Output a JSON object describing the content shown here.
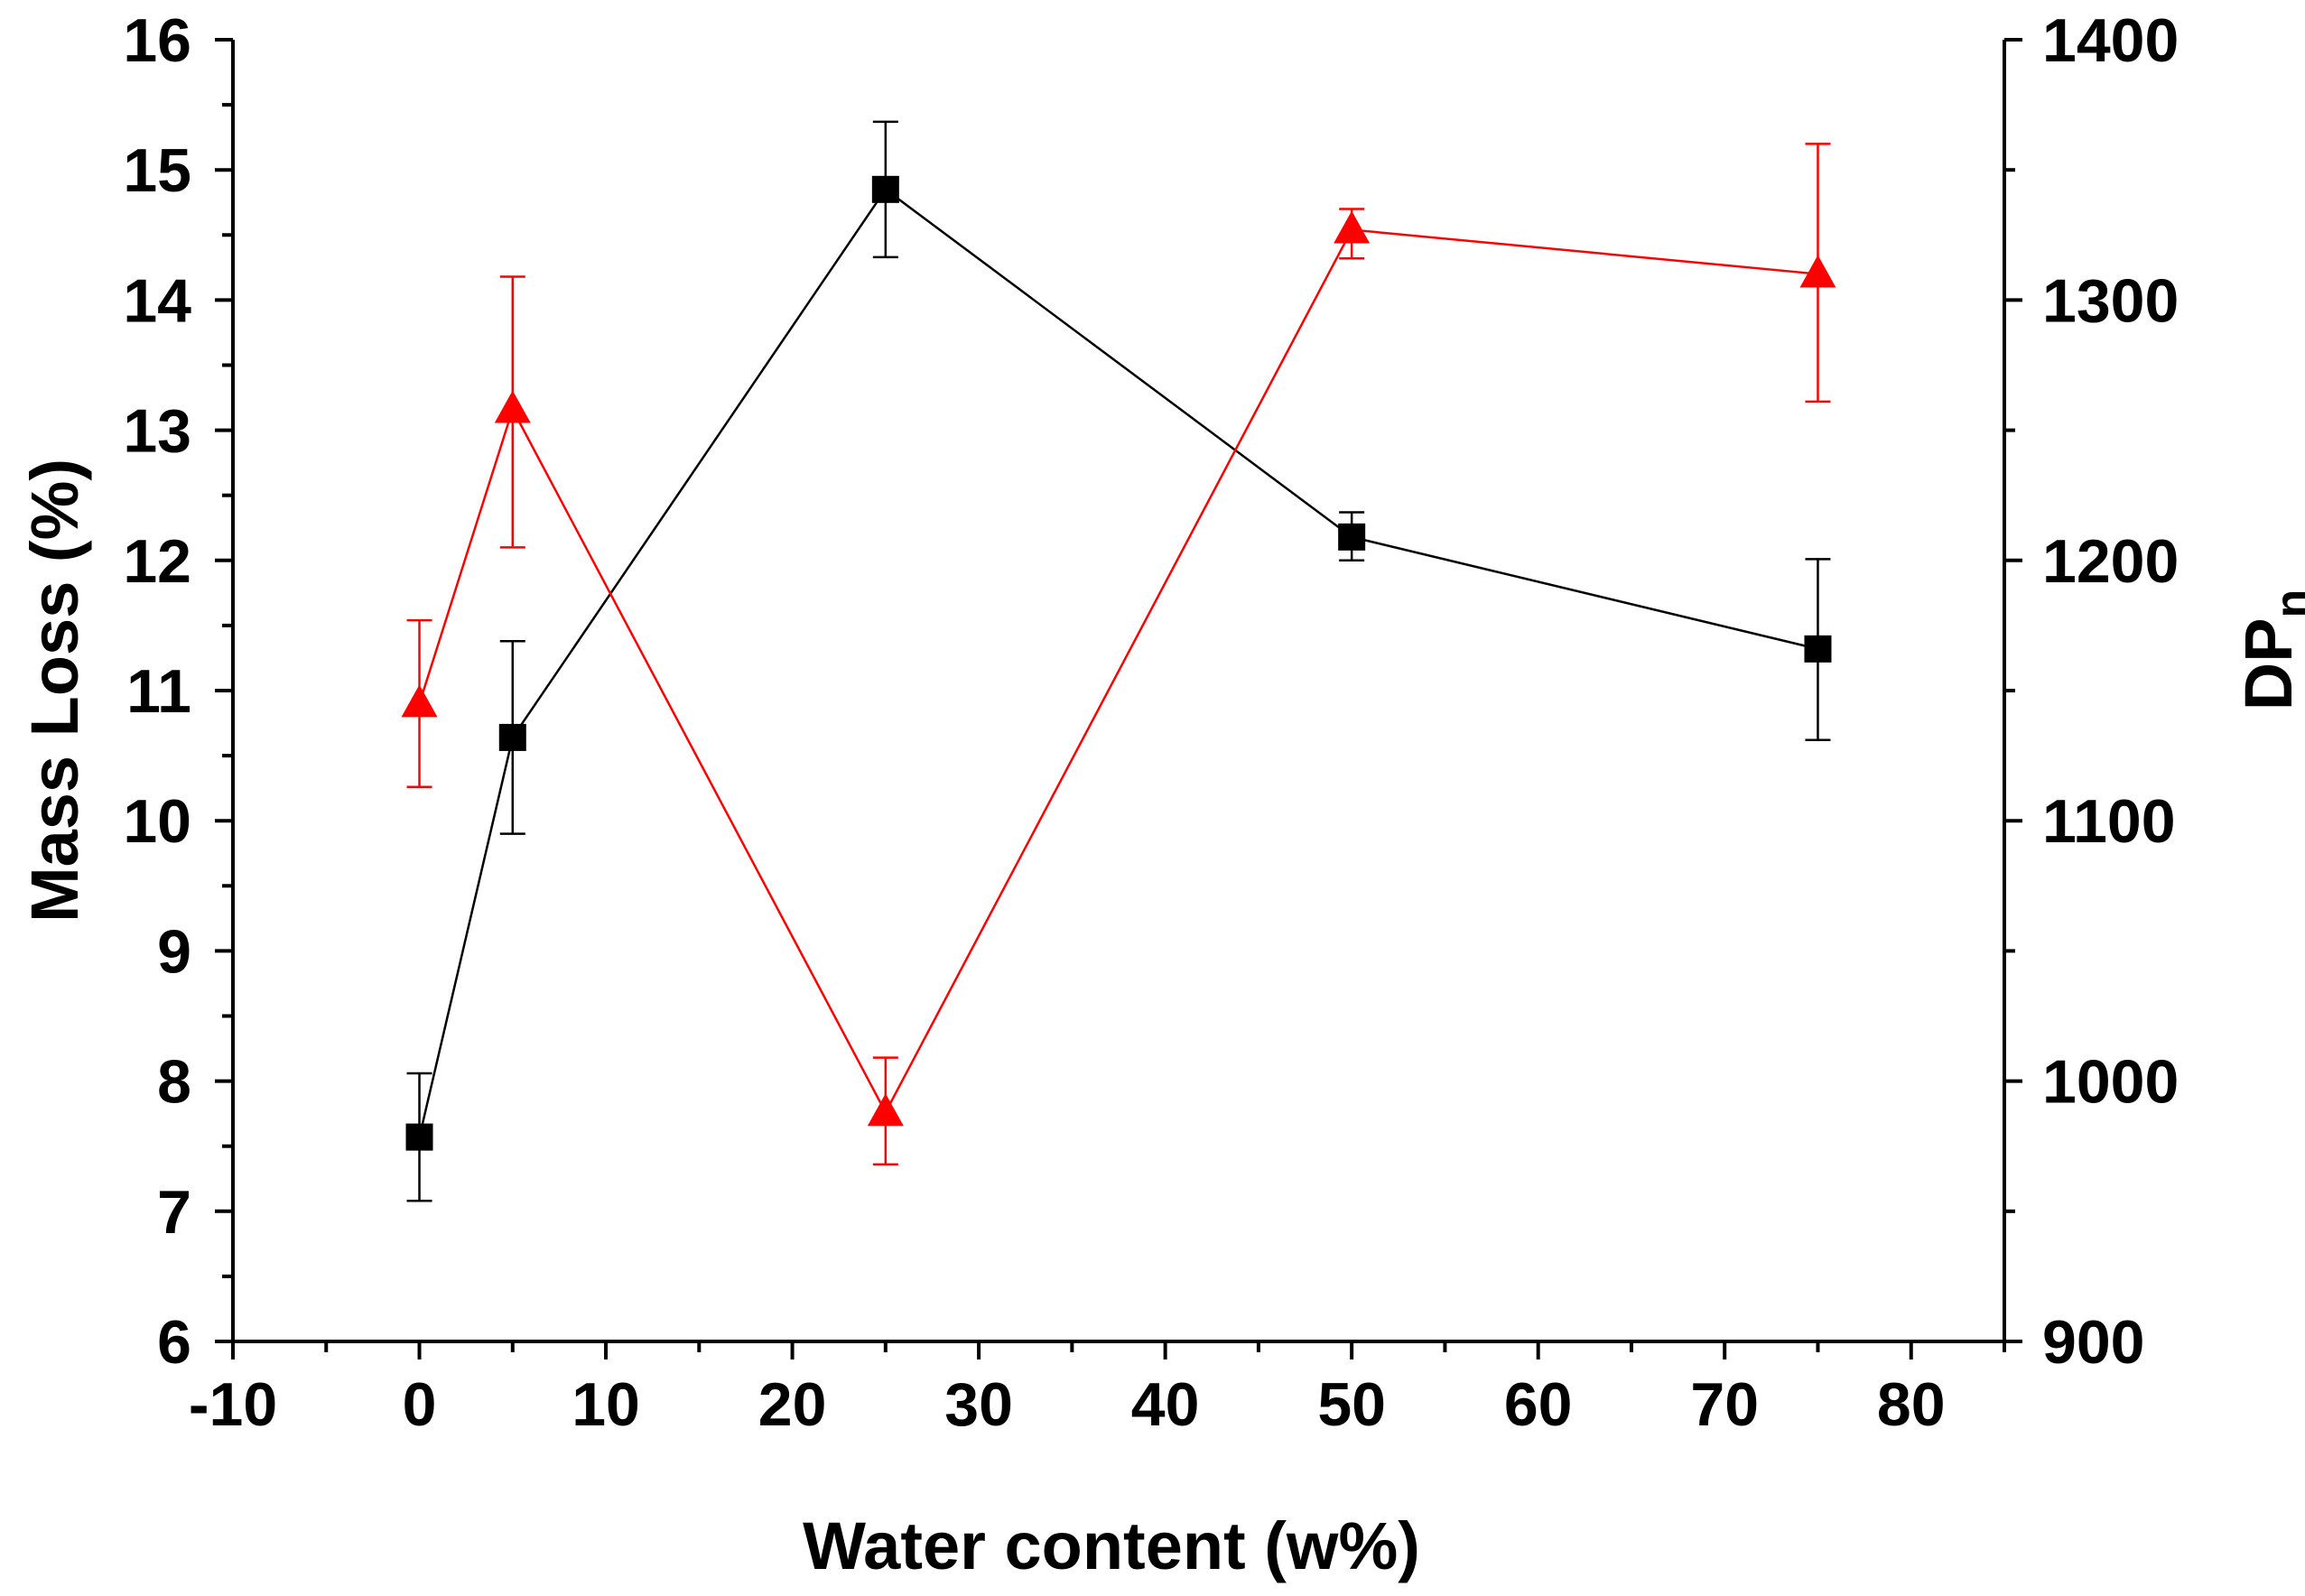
{
  "chart_data": {
    "type": "scatter",
    "title": "",
    "xlabel": "Water content (w%)",
    "ylabel": "Mass Loss (%)",
    "y2label_main": "DP",
    "y2label_sub": "n",
    "xlim": [
      -10,
      85
    ],
    "ylim": [
      6,
      16
    ],
    "y2lim": [
      900,
      1400
    ],
    "grid": false,
    "legend": "none",
    "x_ticks": [
      -10,
      0,
      10,
      20,
      30,
      40,
      50,
      60,
      70,
      80
    ],
    "x_tick_labels": [
      "-10",
      "0",
      "10",
      "20",
      "30",
      "40",
      "50",
      "60",
      "70",
      "80"
    ],
    "y_ticks": [
      6,
      7,
      8,
      9,
      10,
      11,
      12,
      13,
      14,
      15,
      16
    ],
    "y_tick_labels": [
      "6",
      "7",
      "8",
      "9",
      "10",
      "11",
      "12",
      "13",
      "14",
      "15",
      "16"
    ],
    "y2_ticks": [
      900,
      1000,
      1100,
      1200,
      1300,
      1400
    ],
    "y2_tick_labels": [
      "900",
      "1000",
      "1100",
      "1200",
      "1300",
      "1400"
    ],
    "series": [
      {
        "name": "Mass Loss",
        "axis": "left",
        "marker": "square",
        "color": "#000000",
        "x": [
          0,
          5,
          25,
          50,
          75
        ],
        "y": [
          7.57,
          10.64,
          14.85,
          12.18,
          11.32
        ],
        "err_low": [
          7.08,
          9.9,
          14.33,
          12.0,
          10.62
        ],
        "err_high": [
          8.06,
          11.38,
          15.37,
          12.37,
          12.01
        ]
      },
      {
        "name": "DPn",
        "axis": "right",
        "marker": "triangle",
        "color": "#ff0000",
        "x": [
          0,
          5,
          25,
          50,
          75
        ],
        "y": [
          1145,
          1258,
          988,
          1327,
          1310
        ],
        "err_low": [
          1113,
          1205,
          968,
          1316,
          1261
        ],
        "err_high": [
          1177,
          1309,
          1009,
          1335,
          1360
        ]
      }
    ]
  }
}
